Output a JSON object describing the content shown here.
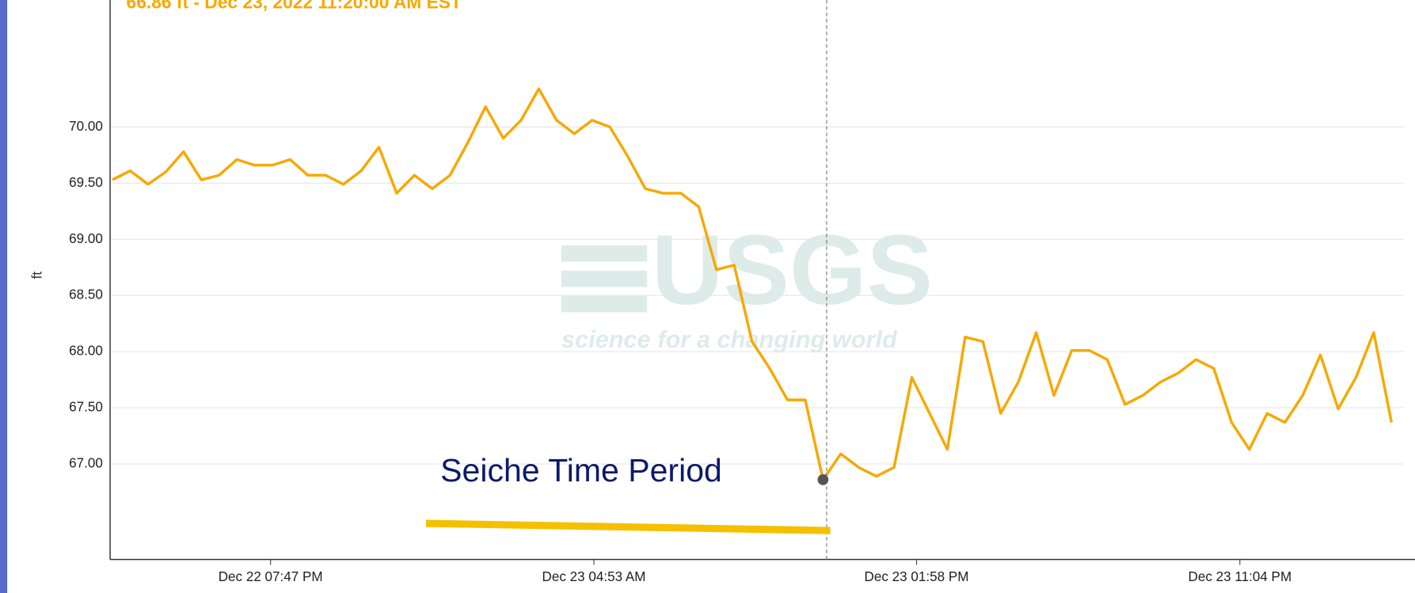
{
  "chart_data": {
    "type": "line",
    "title": "66.86 ft - Dec 23, 2022 11:20:00 AM EST",
    "ylabel": "ft",
    "annotation": "Seiche Time Period",
    "watermark": {
      "logo": "USGS",
      "tagline": "science for a changing world"
    },
    "hover_x": "2022-12-23T11:20",
    "xlim": [
      "2022-12-22T15:16",
      "2022-12-24T03:40"
    ],
    "ylim": [
      66.15,
      71.05
    ],
    "yticks": [
      {
        "value": 67,
        "label": "67.00"
      },
      {
        "value": 67.5,
        "label": "67.50"
      },
      {
        "value": 68,
        "label": "68.00"
      },
      {
        "value": 68.5,
        "label": "68.50"
      },
      {
        "value": 69,
        "label": "69.00"
      },
      {
        "value": 69.5,
        "label": "69.50"
      },
      {
        "value": 70,
        "label": "70.00"
      }
    ],
    "xticks": [
      {
        "value": "2022-12-22T19:47",
        "label": "Dec 22 07:47 PM"
      },
      {
        "value": "2022-12-23T04:53",
        "label": "Dec 23 04:53 AM"
      },
      {
        "value": "2022-12-23T13:58",
        "label": "Dec 23 01:58 PM"
      },
      {
        "value": "2022-12-23T23:04",
        "label": "Dec 23 11:04 PM"
      }
    ],
    "grid": true,
    "x": [
      "2022-12-22T15:20",
      "2022-12-22T15:50",
      "2022-12-22T16:20",
      "2022-12-22T16:50",
      "2022-12-22T17:20",
      "2022-12-22T17:50",
      "2022-12-22T18:20",
      "2022-12-22T18:50",
      "2022-12-22T19:20",
      "2022-12-22T19:50",
      "2022-12-22T20:20",
      "2022-12-22T20:50",
      "2022-12-22T21:20",
      "2022-12-22T21:50",
      "2022-12-22T22:20",
      "2022-12-22T22:50",
      "2022-12-22T23:20",
      "2022-12-22T23:50",
      "2022-12-23T00:20",
      "2022-12-23T00:50",
      "2022-12-23T01:20",
      "2022-12-23T01:50",
      "2022-12-23T02:20",
      "2022-12-23T02:50",
      "2022-12-23T03:20",
      "2022-12-23T03:50",
      "2022-12-23T04:20",
      "2022-12-23T04:50",
      "2022-12-23T05:20",
      "2022-12-23T05:50",
      "2022-12-23T06:20",
      "2022-12-23T06:50",
      "2022-12-23T07:20",
      "2022-12-23T07:50",
      "2022-12-23T08:20",
      "2022-12-23T08:50",
      "2022-12-23T09:20",
      "2022-12-23T09:50",
      "2022-12-23T10:20",
      "2022-12-23T10:50",
      "2022-12-23T11:20",
      "2022-12-23T11:50",
      "2022-12-23T12:20",
      "2022-12-23T12:50",
      "2022-12-23T13:20",
      "2022-12-23T13:50",
      "2022-12-23T14:20",
      "2022-12-23T14:50",
      "2022-12-23T15:20",
      "2022-12-23T15:50",
      "2022-12-23T16:20",
      "2022-12-23T16:50",
      "2022-12-23T17:20",
      "2022-12-23T17:50",
      "2022-12-23T18:20",
      "2022-12-23T18:50",
      "2022-12-23T19:20",
      "2022-12-23T19:50",
      "2022-12-23T20:20",
      "2022-12-23T20:50",
      "2022-12-23T21:20",
      "2022-12-23T21:50",
      "2022-12-23T22:20",
      "2022-12-23T22:50",
      "2022-12-23T23:20",
      "2022-12-23T23:50",
      "2022-12-24T00:20",
      "2022-12-24T00:50",
      "2022-12-24T01:20",
      "2022-12-24T01:50",
      "2022-12-24T02:20",
      "2022-12-24T02:50",
      "2022-12-24T03:20"
    ],
    "series": [
      {
        "name": "ft",
        "color": "#f7a800",
        "values": [
          69.53,
          69.61,
          69.49,
          69.6,
          69.78,
          69.53,
          69.57,
          69.71,
          69.66,
          69.66,
          69.71,
          69.57,
          69.57,
          69.49,
          69.61,
          69.82,
          69.41,
          69.57,
          69.45,
          69.57,
          69.86,
          70.18,
          69.9,
          70.06,
          70.34,
          70.06,
          69.94,
          70.06,
          70.0,
          69.74,
          69.45,
          69.41,
          69.41,
          69.29,
          68.73,
          68.77,
          68.09,
          67.85,
          67.57,
          67.57,
          66.86,
          67.09,
          66.97,
          66.89,
          66.97,
          67.77,
          67.45,
          67.13,
          68.13,
          68.09,
          67.45,
          67.73,
          68.17,
          67.61,
          68.01,
          68.01,
          67.93,
          67.53,
          67.61,
          67.73,
          67.81,
          67.93,
          67.85,
          67.37,
          67.13,
          67.45,
          67.37,
          67.61,
          67.97,
          67.49,
          67.77,
          68.17,
          67.37
        ]
      }
    ]
  }
}
